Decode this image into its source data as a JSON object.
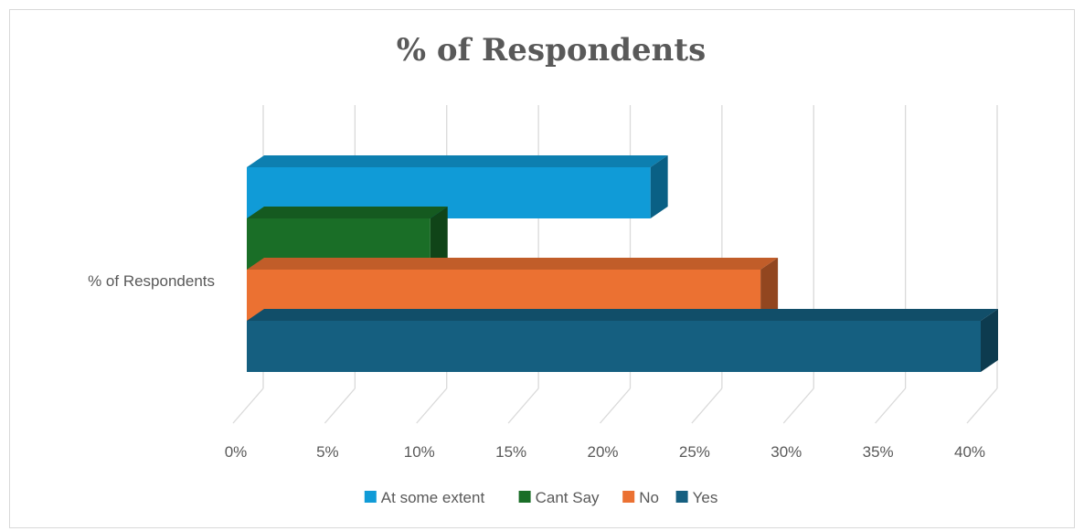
{
  "chart_data": {
    "type": "bar",
    "orientation": "horizontal",
    "style": "3d-clustered",
    "title": "% of Respondents",
    "categories": [
      "% of Respondents"
    ],
    "series": [
      {
        "name": "At some extent",
        "values": [
          22
        ],
        "color": "#109bd7"
      },
      {
        "name": "Cant Say",
        "values": [
          10
        ],
        "color": "#1a6e27"
      },
      {
        "name": "No",
        "values": [
          28
        ],
        "color": "#eb7132"
      },
      {
        "name": "Yes",
        "values": [
          40
        ],
        "color": "#155f80"
      }
    ],
    "xlim": [
      0,
      40
    ],
    "xticks": [
      "0%",
      "5%",
      "10%",
      "15%",
      "20%",
      "25%",
      "30%",
      "35%",
      "40%"
    ],
    "grid": true,
    "legend": "bottom"
  }
}
